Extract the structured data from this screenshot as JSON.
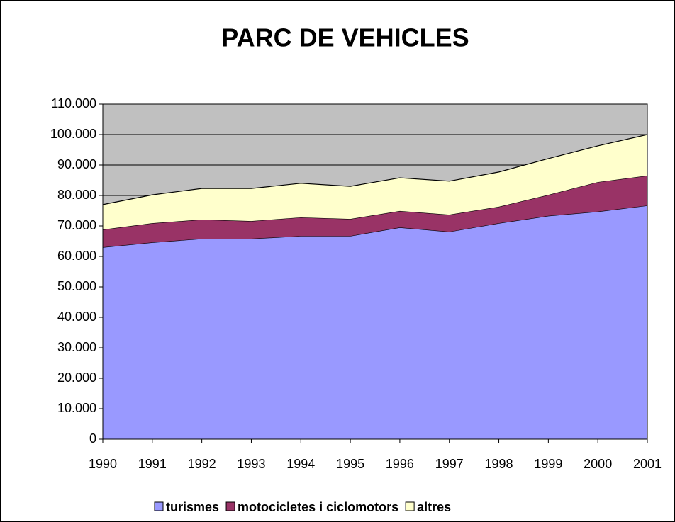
{
  "chart_data": {
    "type": "stacked_area",
    "title": "PARC DE VEHICLES",
    "categories": [
      "1990",
      "1991",
      "1992",
      "1993",
      "1994",
      "1995",
      "1996",
      "1997",
      "1998",
      "1999",
      "2000",
      "2001"
    ],
    "series": [
      {
        "name": "turismes",
        "color": "#9999ff",
        "values": [
          63000,
          64600,
          65800,
          65800,
          66700,
          66700,
          69500,
          68100,
          70900,
          73300,
          74700,
          76700
        ]
      },
      {
        "name": "motocicletes i ciclomotors",
        "color": "#993366",
        "values": [
          5800,
          6300,
          6300,
          5800,
          6100,
          5600,
          5400,
          5600,
          5400,
          6900,
          9700,
          9800
        ]
      },
      {
        "name": "altres",
        "color": "#ffffcc",
        "values": [
          8200,
          9300,
          10200,
          10700,
          11200,
          10700,
          10900,
          11000,
          11400,
          11900,
          11900,
          13500
        ]
      }
    ],
    "ylim": [
      0,
      110000
    ],
    "yticks": [
      0,
      {
        "value": 10000,
        "label": "10.000"
      },
      {
        "value": 20000,
        "label": "20.000"
      },
      {
        "value": 30000,
        "label": "30.000"
      },
      {
        "value": 40000,
        "label": "40.000"
      },
      {
        "value": 50000,
        "label": "50.000"
      },
      {
        "value": 60000,
        "label": "60.000"
      },
      {
        "value": 70000,
        "label": "70.000"
      },
      {
        "value": 80000,
        "label": "80.000"
      },
      {
        "value": 90000,
        "label": "90.000"
      },
      {
        "value": 100000,
        "label": "100.000"
      },
      {
        "value": 110000,
        "label": "110.000"
      }
    ],
    "grid": true,
    "plot_background": "#c0c0c0",
    "legend": "bottom"
  }
}
